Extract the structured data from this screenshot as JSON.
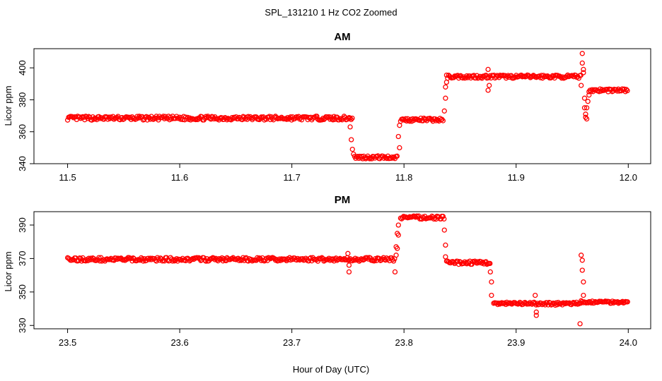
{
  "figure": {
    "title": "SPL_131210  1 Hz CO2 Zoomed",
    "xlabel": "Hour of Day (UTC)"
  },
  "colors": {
    "points": "#ff0000",
    "axis": "#000000",
    "background": "#ffffff"
  },
  "chart_data": [
    {
      "type": "scatter",
      "title": "AM",
      "xlabel": "",
      "ylabel": "Licor ppm",
      "xlim": [
        11.47,
        12.02
      ],
      "ylim": [
        340,
        412
      ],
      "xticks": [
        11.5,
        11.6,
        11.7,
        11.8,
        11.9,
        12.0
      ],
      "xtick_labels": [
        "11.5",
        "11.6",
        "11.7",
        "11.8",
        "11.9",
        "12.0"
      ],
      "yticks": [
        340,
        360,
        380,
        400
      ],
      "ytick_labels": [
        "340",
        "360",
        "380",
        "400"
      ],
      "grid": false,
      "legend": "none",
      "segments": [
        {
          "x": [
            11.5,
            11.754
          ],
          "y": 368.5,
          "noise": 1.2
        },
        {
          "x": [
            11.756,
            11.794
          ],
          "y": 344,
          "noise": 1.0
        },
        {
          "x": [
            11.797,
            11.835
          ],
          "y": 367.5,
          "noise": 1.0
        },
        {
          "x": [
            11.838,
            11.958
          ],
          "y": 394.5,
          "noise": 1.0
        },
        {
          "x": [
            11.965,
            12.0
          ],
          "y": 386,
          "noise": 1.0
        }
      ],
      "points": [
        [
          11.752,
          363
        ],
        [
          11.753,
          355
        ],
        [
          11.754,
          349
        ],
        [
          11.755,
          346
        ],
        [
          11.795,
          357
        ],
        [
          11.796,
          364
        ],
        [
          11.796,
          350
        ],
        [
          11.836,
          373
        ],
        [
          11.837,
          381
        ],
        [
          11.837,
          388
        ],
        [
          11.838,
          391
        ],
        [
          11.875,
          399
        ],
        [
          11.875,
          386
        ],
        [
          11.876,
          389
        ],
        [
          11.959,
          409
        ],
        [
          11.959,
          403
        ],
        [
          11.96,
          399
        ],
        [
          11.96,
          397
        ],
        [
          11.958,
          389
        ],
        [
          11.961,
          381
        ],
        [
          11.961,
          375
        ],
        [
          11.962,
          371
        ],
        [
          11.962,
          369
        ],
        [
          11.963,
          368
        ],
        [
          11.963,
          375
        ],
        [
          11.964,
          379
        ],
        [
          11.965,
          383
        ]
      ]
    },
    {
      "type": "scatter",
      "title": "PM",
      "xlabel": "Hour of Day (UTC)",
      "ylabel": "Licor ppm",
      "xlim": [
        23.47,
        24.02
      ],
      "ylim": [
        328,
        398
      ],
      "xticks": [
        23.5,
        23.6,
        23.7,
        23.8,
        23.9,
        24.0
      ],
      "xtick_labels": [
        "23.5",
        "23.6",
        "23.7",
        "23.8",
        "23.9",
        "24.0"
      ],
      "yticks": [
        330,
        350,
        370,
        390
      ],
      "ytick_labels": [
        "330",
        "350",
        "370",
        "390"
      ],
      "grid": false,
      "legend": "none",
      "segments": [
        {
          "x": [
            23.5,
            23.792
          ],
          "y": 369.5,
          "noise": 1.1
        },
        {
          "x": [
            23.797,
            23.836
          ],
          "y": 394.5,
          "noise": 1.0
        },
        {
          "x": [
            23.838,
            23.877
          ],
          "y": 367.5,
          "noise": 1.0
        },
        {
          "x": [
            23.88,
            23.958
          ],
          "y": 343,
          "noise": 0.9
        },
        {
          "x": [
            23.958,
            24.0
          ],
          "y": 344,
          "noise": 0.8
        }
      ],
      "points": [
        [
          23.75,
          373
        ],
        [
          23.751,
          366
        ],
        [
          23.751,
          362
        ],
        [
          23.792,
          362
        ],
        [
          23.793,
          372
        ],
        [
          23.793,
          377
        ],
        [
          23.794,
          376
        ],
        [
          23.794,
          385
        ],
        [
          23.795,
          384
        ],
        [
          23.795,
          390
        ],
        [
          23.836,
          387
        ],
        [
          23.837,
          378
        ],
        [
          23.837,
          371
        ],
        [
          23.877,
          362
        ],
        [
          23.878,
          356
        ],
        [
          23.878,
          348
        ],
        [
          23.917,
          348
        ],
        [
          23.918,
          338
        ],
        [
          23.918,
          336
        ],
        [
          23.957,
          331
        ],
        [
          23.958,
          372
        ],
        [
          23.959,
          369
        ],
        [
          23.959,
          363
        ],
        [
          23.96,
          356
        ],
        [
          23.96,
          348
        ]
      ]
    }
  ]
}
